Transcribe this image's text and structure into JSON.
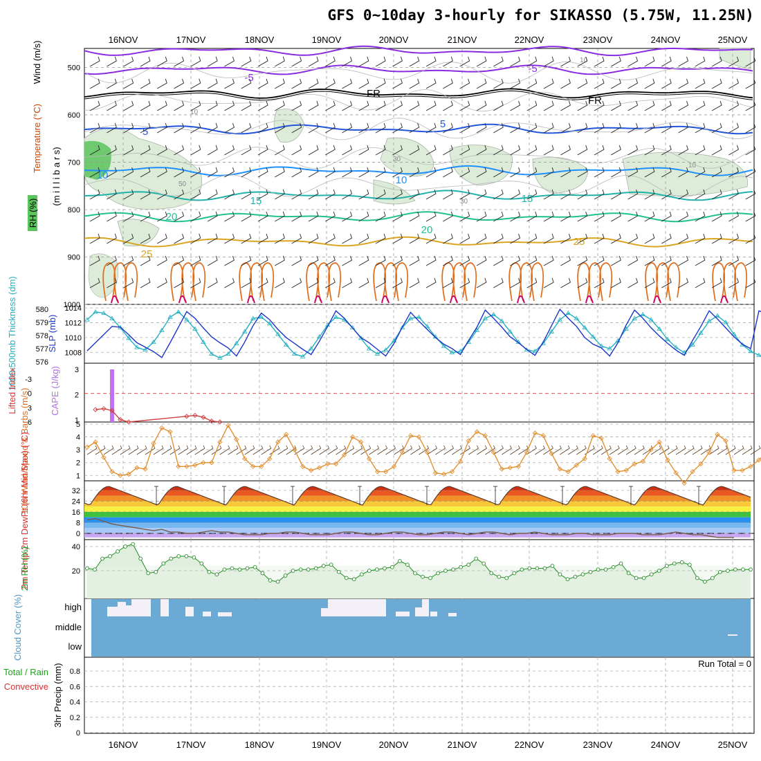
{
  "title": "GFS 0~10day 3-hourly for SIKASSO (5.75W, 11.25N)",
  "dates": [
    "16NOV",
    "17NOV",
    "18NOV",
    "19NOV",
    "20NOV",
    "21NOV",
    "22NOV",
    "23NOV",
    "24NOV",
    "25NOV"
  ],
  "colors": {
    "temp_cold": "#8a2be2",
    "temp_freeze": "#000000",
    "temp_5": "#2255dd",
    "temp_10": "#1e90ff",
    "temp_15": "#20b2aa",
    "temp_20": "#20c090",
    "temp_25": "#daa520",
    "temp_30": "#e07020",
    "temp_35": "#cc0066",
    "rh_fill": "#d8ead8",
    "grid": "#a0a0a0"
  },
  "chart_data": [
    {
      "type": "contour",
      "panel": "upper-air",
      "ylabel_wind": "Wind (m/s)",
      "ylabel_temp": "Temperature (°C)",
      "ylabel_rh": "RH (%)",
      "ylabel_p": "(m i l l i b a r s)",
      "yticks": [
        "500",
        "600",
        "700",
        "800",
        "900",
        "1000"
      ],
      "ylim": [
        1000,
        460
      ],
      "freezing_label": "FR",
      "contours": [
        {
          "label": "-5",
          "level_mb": 465,
          "color": "#8a2be2"
        },
        {
          "label": "-5",
          "level_mb": 505,
          "color": "#8a2be2"
        },
        {
          "label": "FR",
          "level_mb": 555,
          "color": "#000000"
        },
        {
          "label": "5",
          "level_mb": 630,
          "color": "#2255dd"
        },
        {
          "label": "10",
          "level_mb": 718,
          "color": "#1e90ff"
        },
        {
          "label": "15",
          "level_mb": 770,
          "color": "#20b2aa"
        },
        {
          "label": "20",
          "level_mb": 815,
          "color": "#20c090"
        },
        {
          "label": "25",
          "level_mb": 868,
          "color": "#daa520"
        }
      ],
      "contour_labels": [
        "-5",
        "-5",
        "FR",
        "FR",
        "5",
        "5",
        "10",
        "10",
        "15",
        "15",
        "20",
        "20",
        "25",
        "25"
      ],
      "rh_labels": [
        "10",
        "10",
        "30",
        "30",
        "50",
        "10"
      ]
    },
    {
      "type": "line",
      "panel": "thickness-slp",
      "ylabel_left": "1000-500mb Thickness (dm)",
      "ylabel_right": "SLP (mb)",
      "yticks_left": [
        "580",
        "579",
        "578",
        "577",
        "576"
      ],
      "yticks_right": [
        "1014",
        "1012",
        "1010",
        "1008"
      ],
      "series": [
        {
          "name": "SLP (mb)",
          "color": "#1a35c8",
          "values": [
            1008.2,
            1009.3,
            1010.4,
            1011.5,
            1011.4,
            1010.4,
            1009.3,
            1008.7,
            1008.1,
            1007.3,
            1009.3,
            1011.4,
            1013.5,
            1012.6,
            1011.3,
            1010.1,
            1009.3,
            1008.6,
            1007.5,
            1009.4,
            1011.6,
            1013.3,
            1012.4,
            1011.1,
            1010.0,
            1009.2,
            1008.4,
            1007.7,
            1009.5,
            1011.5,
            1013.6,
            1012.6,
            1011.3,
            1010.0,
            1009.3,
            1008.4,
            1007.5,
            1009.2,
            1011.4,
            1013.4,
            1012.2,
            1011.1,
            1010.0,
            1009.1,
            1008.5,
            1007.7,
            1009.6,
            1011.4,
            1013.7,
            1012.6,
            1011.4,
            1010.1,
            1009.3,
            1008.4,
            1007.6,
            1009.4,
            1011.6,
            1013.8,
            1012.6,
            1011.5,
            1010.0,
            1009.1,
            1008.6,
            1007.5,
            1009.3,
            1011.7,
            1013.7,
            1012.6,
            1011.3,
            1010.2,
            1009.2,
            1008.3,
            1007.6,
            1009.6,
            1011.5,
            1013.6,
            1012.5,
            1011.3,
            1010.1,
            1009.1,
            1008.5,
            1013.6,
            1013.2
          ]
        },
        {
          "name": "1000-500mb Thickness (dm)",
          "color": "#20b0c0",
          "values": [
            579.2,
            579.8,
            579.7,
            579.3,
            578.6,
            577.8,
            577.1,
            576.9,
            577.5,
            578.4,
            579.4,
            579.8,
            579.2,
            578.5,
            577.5,
            576.6,
            576.3,
            576.6,
            577.4,
            578.3,
            579.3,
            579.4,
            578.9,
            578.1,
            577.3,
            576.6,
            576.4,
            577.0,
            577.9,
            578.8,
            579.4,
            579.2,
            578.6,
            577.8,
            577.0,
            576.6,
            576.9,
            577.6,
            578.6,
            579.3,
            579.4,
            578.7,
            577.9,
            577.2,
            576.7,
            576.8,
            577.5,
            578.4,
            579.3,
            579.6,
            579.1,
            578.3,
            577.5,
            576.9,
            576.8,
            577.4,
            578.3,
            579.2,
            579.7,
            579.3,
            578.6,
            577.9,
            577.2,
            577.0,
            577.6,
            578.5,
            579.3,
            579.6,
            579.2,
            578.5,
            577.7,
            577.1,
            576.7,
            577.3,
            578.2,
            579.1,
            579.5,
            579.0,
            578.1,
            577.3,
            576.8,
            576.5,
            576.3
          ]
        }
      ]
    },
    {
      "type": "bar",
      "panel": "cape-li",
      "ylabel_left": "Lifted Index",
      "ylabel_right": "CAPE (J/kg)",
      "yticks_left": [
        "-3",
        "0",
        "3",
        "6"
      ],
      "yticks_right": [
        "3",
        "2",
        "1"
      ],
      "cape_bar": {
        "x_index": 3,
        "value": 3
      },
      "lifted_index": [
        null,
        3.4,
        3.2,
        3.6,
        5.5,
        6.0,
        null,
        null,
        null,
        null,
        null,
        null,
        4.8,
        4.6,
        5.0,
        5.8,
        6.0
      ]
    },
    {
      "type": "line",
      "panel": "10m-wind",
      "ylabel": "10m Wind Speed & Barbs (m/s)",
      "yticks": [
        "5",
        "4",
        "3",
        "2",
        "1"
      ],
      "series": [
        {
          "name": "10m Wind Speed",
          "color": "#e09030",
          "values": [
            3.2,
            3.6,
            2.4,
            1.3,
            1.0,
            1.1,
            1.6,
            1.5,
            3.5,
            4.7,
            4.4,
            1.7,
            1.7,
            1.8,
            2.0,
            2.0,
            3.6,
            4.9,
            3.8,
            2.3,
            1.7,
            1.7,
            2.3,
            3.6,
            4.2,
            3.0,
            1.7,
            1.4,
            1.6,
            1.9,
            1.9,
            2.6,
            4.0,
            3.6,
            2.3,
            1.3,
            1.3,
            1.7,
            2.8,
            4.1,
            4.0,
            2.8,
            1.2,
            1.1,
            1.3,
            2.1,
            3.7,
            4.4,
            4.1,
            2.8,
            1.5,
            1.6,
            1.7,
            2.8,
            4.3,
            4.1,
            2.7,
            1.5,
            1.3,
            1.8,
            2.3,
            4.1,
            3.9,
            2.3,
            1.3,
            1.4,
            1.9,
            2.1,
            3.0,
            3.6,
            2.2,
            1.2,
            0.4,
            1.3,
            1.9,
            2.8,
            4.2,
            3.7,
            1.4,
            1.4,
            1.7,
            2.2,
            2.9
          ]
        }
      ]
    },
    {
      "type": "area",
      "panel": "2m-temp",
      "ylabel": "2m Temp 2m DewPt (6hr Min/Max) (°C)",
      "yticks": [
        "32",
        "24",
        "16",
        "8",
        "0"
      ],
      "temp_max_per_day": [
        35,
        35,
        35,
        35,
        35,
        35,
        35,
        35,
        35,
        35
      ],
      "temp_min_per_day": [
        21,
        21,
        21,
        21,
        21,
        21,
        21,
        21,
        21,
        21
      ],
      "dewpoint": [
        10,
        11,
        9,
        7,
        6,
        5,
        4,
        3,
        2,
        3,
        1,
        1,
        0,
        0,
        1,
        2,
        1,
        1,
        0,
        -1,
        -1,
        -1,
        0,
        0,
        1,
        1,
        0,
        -1,
        -1,
        -1,
        0,
        1,
        1,
        0,
        -1,
        -1,
        0,
        1,
        1,
        0,
        -1,
        -1,
        0,
        1,
        1,
        0,
        -1,
        0,
        1,
        1,
        0,
        -1,
        0,
        0,
        1,
        0,
        -1,
        -1,
        -1,
        0,
        0,
        -1,
        -1,
        -1,
        0,
        0,
        0,
        -1,
        -1,
        -1,
        0,
        1,
        0,
        -1,
        -1,
        -2,
        -3,
        -3,
        -3
      ]
    },
    {
      "type": "area",
      "panel": "2m-rh",
      "ylabel": "2m RH (%)",
      "yticks": [
        "40",
        "20"
      ],
      "series": [
        {
          "name": "2m RH",
          "color": "#228b22",
          "values": [
            22,
            21,
            30,
            32,
            36,
            40,
            42,
            30,
            18,
            19,
            26,
            30,
            32,
            32,
            31,
            26,
            19,
            17,
            21,
            22,
            21,
            22,
            23,
            18,
            12,
            11,
            16,
            20,
            21,
            21,
            22,
            24,
            25,
            19,
            14,
            13,
            17,
            20,
            21,
            22,
            23,
            28,
            25,
            18,
            15,
            14,
            18,
            20,
            21,
            23,
            25,
            30,
            26,
            18,
            15,
            14,
            18,
            21,
            22,
            22,
            22,
            24,
            17,
            13,
            15,
            17,
            19,
            21,
            21,
            23,
            26,
            18,
            14,
            14,
            17,
            20,
            24,
            26,
            27,
            25,
            14,
            11,
            14,
            19,
            20,
            21,
            21,
            21
          ]
        }
      ]
    },
    {
      "type": "bar",
      "panel": "cloud-cover",
      "ylabel": "Cloud Cover (%)",
      "levels": [
        "high",
        "middle",
        "low"
      ]
    },
    {
      "type": "bar",
      "panel": "precip",
      "ylabel": "3hr Precip (mm)",
      "legend_total": "Total / Rain",
      "legend_conv": "Convective",
      "yticks": [
        "0.8",
        "0.6",
        "0.4",
        "0.2",
        "0"
      ],
      "run_total": "Run Total = 0"
    }
  ]
}
